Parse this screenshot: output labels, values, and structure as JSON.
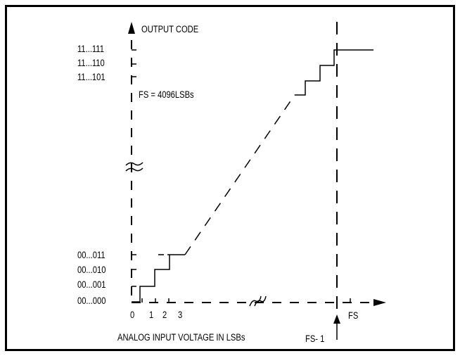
{
  "figure": {
    "y_axis_title": "OUTPUT CODE",
    "x_axis_title": "ANALOG INPUT VOLTAGE IN LSBs",
    "annotation": "FS = 4096LSBs",
    "y_ticks_high": [
      "11...111",
      "11...110",
      "11...101"
    ],
    "y_ticks_low": [
      "00...011",
      "00...010",
      "00...001",
      "00...000"
    ],
    "x_ticks": [
      "0",
      "1",
      "2",
      "3"
    ],
    "fs_label": "FS",
    "fs_minus_one_label": "FS- 1"
  }
}
